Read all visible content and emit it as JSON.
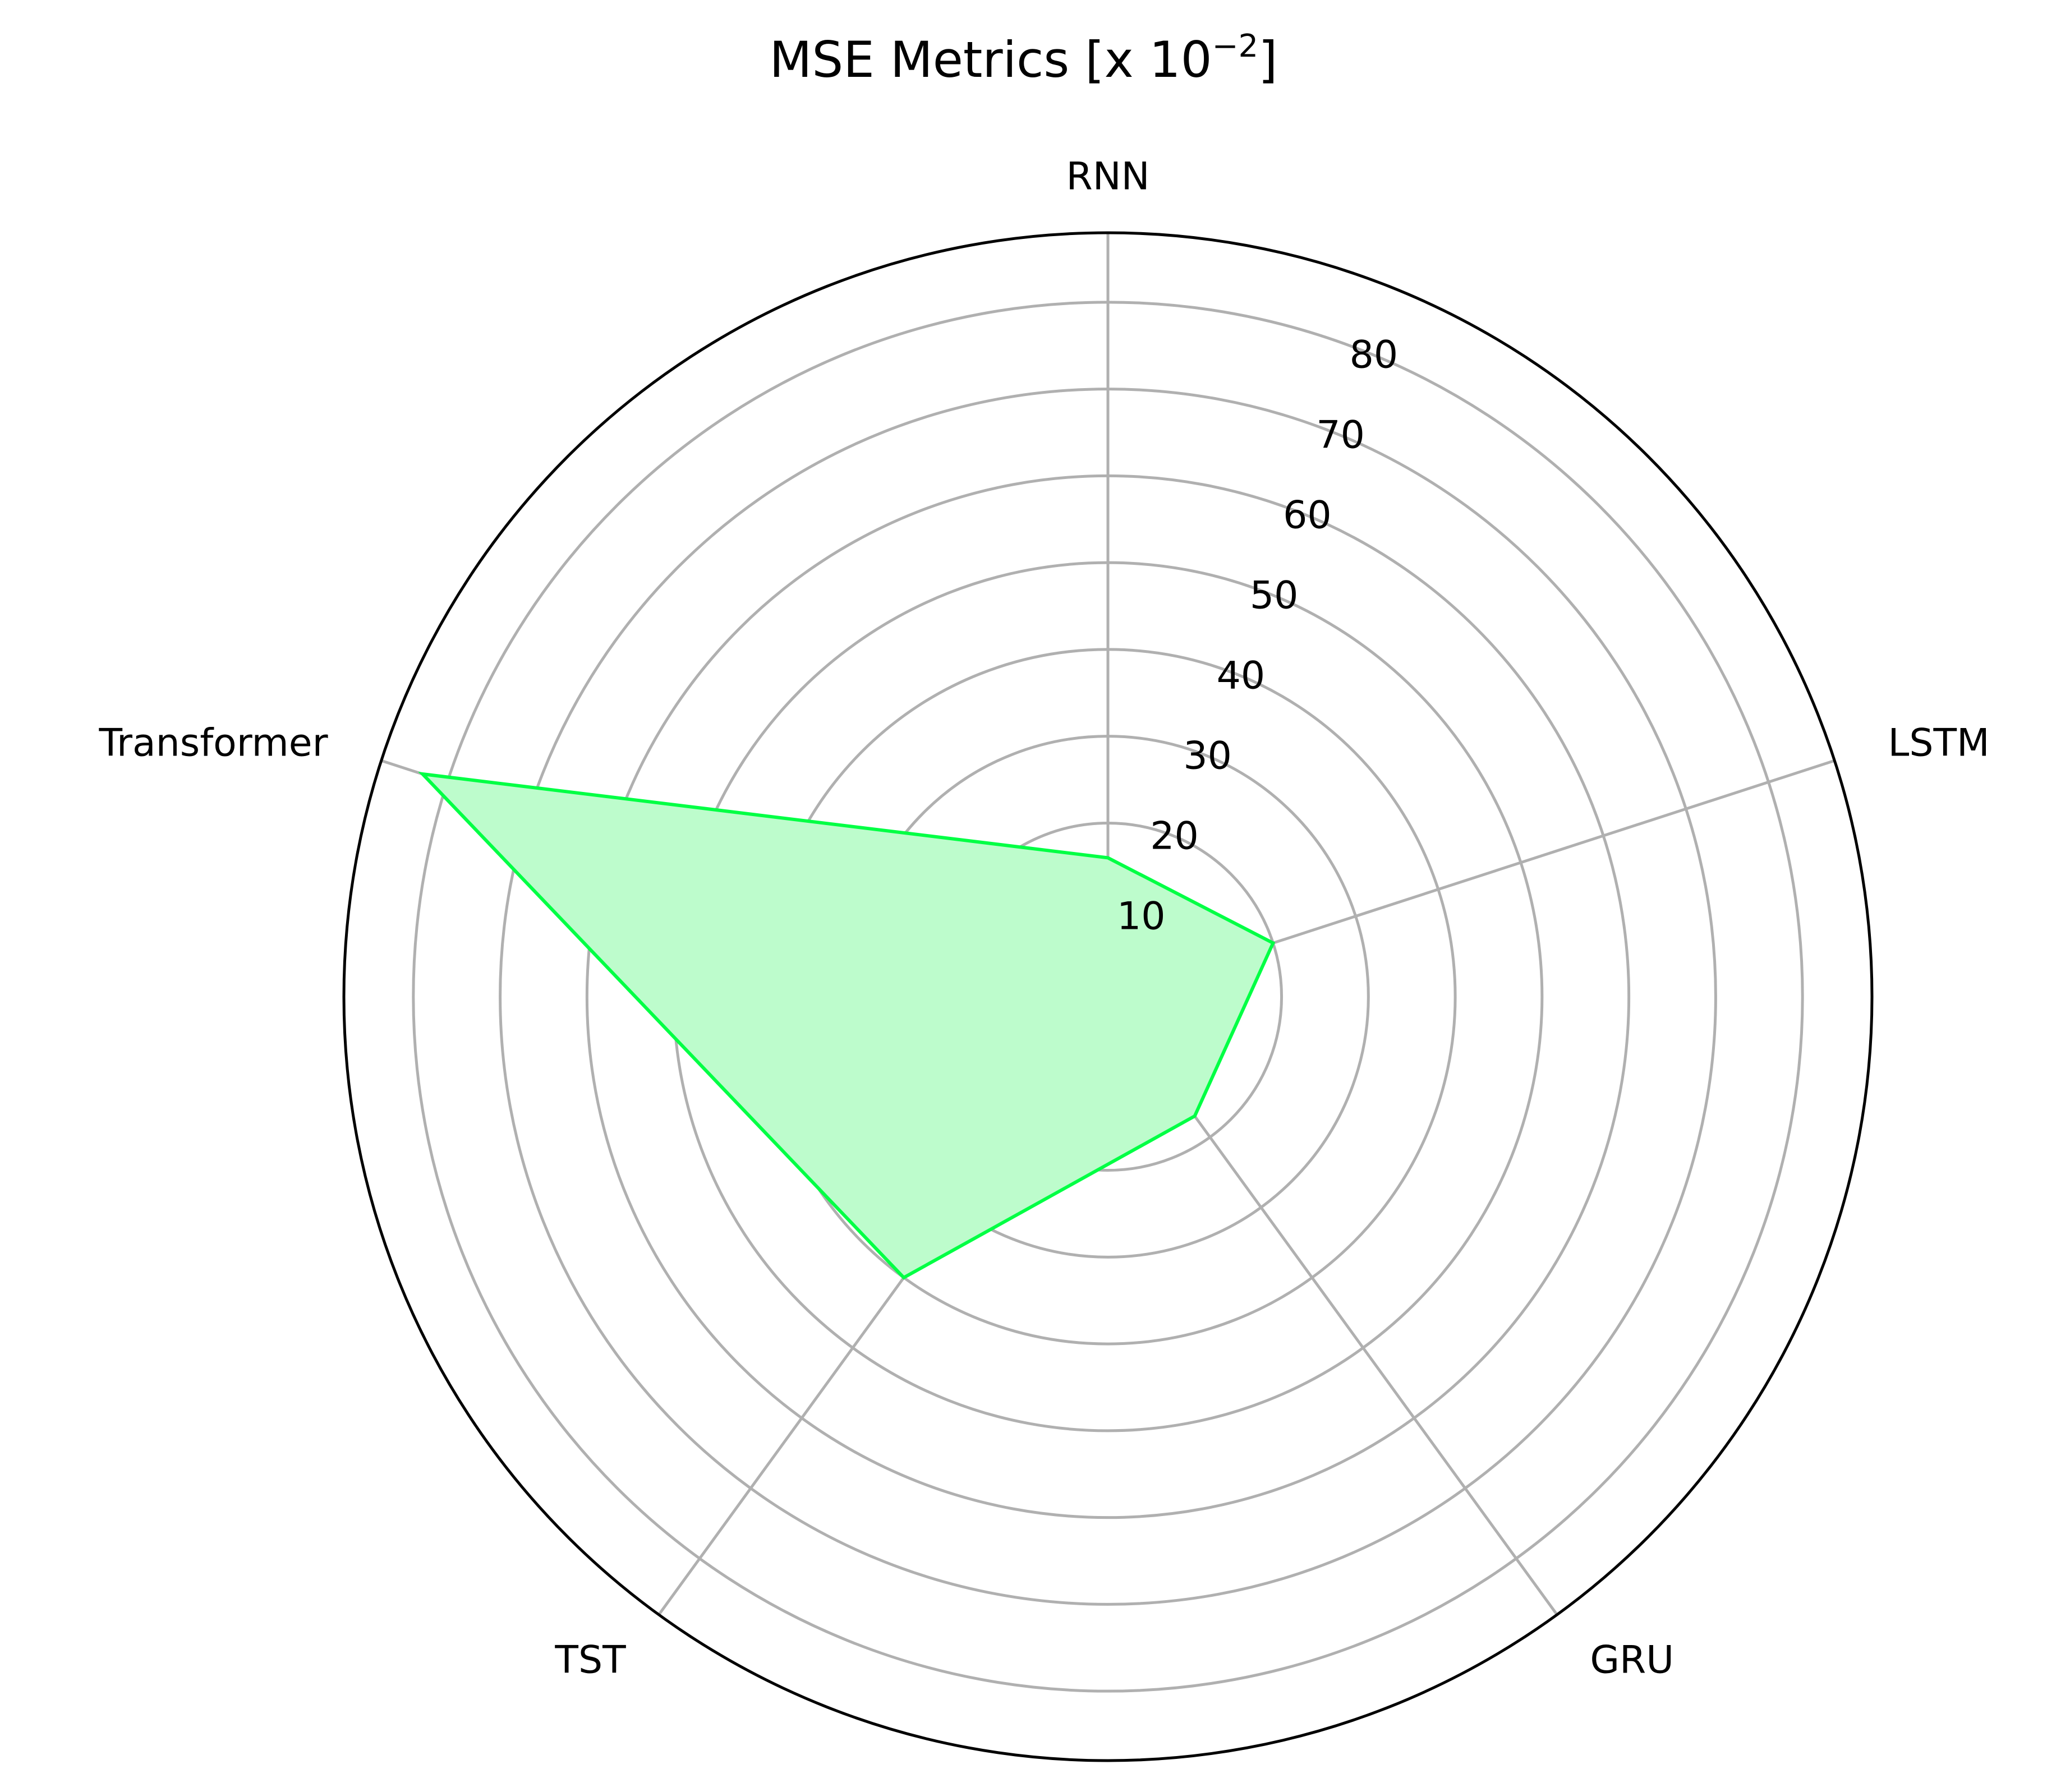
{
  "chart_data": {
    "type": "radar",
    "title": {
      "main": "MSE Metrics  [x 10",
      "exponent": "−2",
      "close": "]"
    },
    "categories": [
      "RNN",
      "LSTM",
      "GRU",
      "TST",
      "Transformer"
    ],
    "series": [
      {
        "values": [
          16,
          20,
          17,
          40,
          83
        ],
        "line_color": "#00ff44",
        "fill_color": "#bdfccc"
      }
    ],
    "radial_ticks": [
      10,
      20,
      30,
      40,
      50,
      60,
      70,
      80
    ],
    "rlim": [
      0,
      88
    ],
    "grid": true,
    "grid_color": "#b0b0b0",
    "outline_color": "#000000"
  }
}
